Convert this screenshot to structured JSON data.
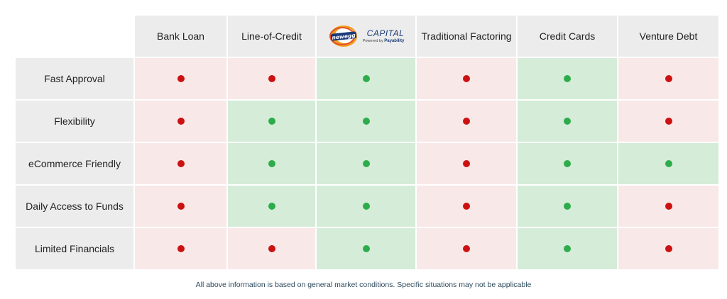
{
  "columns": [
    {
      "label": "Bank Loan"
    },
    {
      "label": "Line-of-Credit"
    },
    {
      "label": "",
      "logo": {
        "brand": "newegg",
        "capital": "CAPITAL",
        "powered": "Powered by",
        "partner": "Payability"
      }
    },
    {
      "label": "Traditional Factoring"
    },
    {
      "label": "Credit Cards"
    },
    {
      "label": "Venture Debt"
    }
  ],
  "rows": [
    {
      "label": "Fast Approval",
      "values": [
        false,
        false,
        true,
        false,
        true,
        false
      ]
    },
    {
      "label": "Flexibility",
      "values": [
        false,
        true,
        true,
        false,
        true,
        false
      ]
    },
    {
      "label": "eCommerce Friendly",
      "values": [
        false,
        true,
        true,
        false,
        true,
        true
      ]
    },
    {
      "label": "Daily Access to Funds",
      "values": [
        false,
        true,
        true,
        false,
        true,
        false
      ]
    },
    {
      "label": "Limited Financials",
      "values": [
        false,
        false,
        true,
        false,
        true,
        false
      ]
    }
  ],
  "colors": {
    "yes": "#2eac4c",
    "no": "#cc1111",
    "yes_bg": "#d4ecd8",
    "no_bg": "#f9e8e8"
  },
  "footnote": "All above information is based on general market conditions. Specific situations may not be applicable"
}
